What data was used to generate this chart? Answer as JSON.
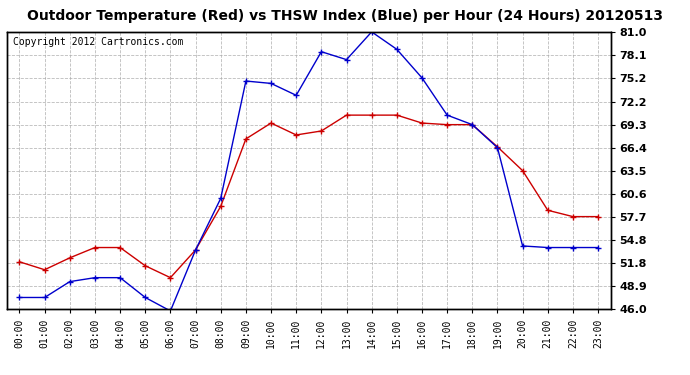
{
  "title": "Outdoor Temperature (Red) vs THSW Index (Blue) per Hour (24 Hours) 20120513",
  "copyright": "Copyright 2012 Cartronics.com",
  "hours": [
    "00:00",
    "01:00",
    "02:00",
    "03:00",
    "04:00",
    "05:00",
    "06:00",
    "07:00",
    "08:00",
    "09:00",
    "10:00",
    "11:00",
    "12:00",
    "13:00",
    "14:00",
    "15:00",
    "16:00",
    "17:00",
    "18:00",
    "19:00",
    "20:00",
    "21:00",
    "22:00",
    "23:00"
  ],
  "temp_red": [
    52.0,
    51.0,
    52.5,
    53.8,
    53.8,
    51.5,
    50.0,
    53.5,
    59.0,
    67.5,
    69.5,
    68.0,
    68.5,
    70.5,
    70.5,
    70.5,
    69.5,
    69.3,
    69.3,
    66.5,
    63.5,
    58.5,
    57.7,
    57.7
  ],
  "thsw_blue": [
    47.5,
    47.5,
    49.5,
    50.0,
    50.0,
    47.5,
    45.8,
    53.5,
    60.0,
    74.8,
    74.5,
    73.0,
    78.5,
    77.5,
    81.0,
    78.8,
    75.2,
    70.5,
    69.3,
    66.4,
    54.0,
    53.8,
    53.8,
    53.8
  ],
  "ylim": [
    46.0,
    81.0
  ],
  "yticks": [
    46.0,
    48.9,
    51.8,
    54.8,
    57.7,
    60.6,
    63.5,
    66.4,
    69.3,
    72.2,
    75.2,
    78.1,
    81.0
  ],
  "red_color": "#cc0000",
  "blue_color": "#0000cc",
  "bg_color": "#ffffff",
  "grid_color": "#aaaaaa",
  "title_fontsize": 10,
  "copyright_fontsize": 7,
  "tick_fontsize": 8,
  "xlabel_fontsize": 7
}
